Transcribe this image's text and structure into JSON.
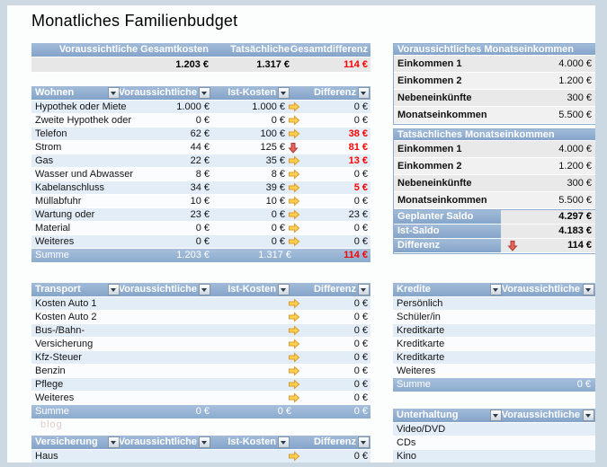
{
  "page": {
    "title": "Monatliches Familienbudget",
    "watermark": "blog"
  },
  "overview": {
    "headers": [
      "Voraussichtliche Gesamtkosten",
      "Tatsächliche",
      "Gesamtdifferenz"
    ],
    "values": [
      {
        "text": "1.203 €",
        "red": false
      },
      {
        "text": "1.317 €",
        "red": false
      },
      {
        "text": "114 €",
        "red": true
      }
    ]
  },
  "wohnen": {
    "title": "Wohnen",
    "col_headers": [
      "Voraussichtliche",
      "Ist-Kosten",
      "Differenz"
    ],
    "rows": [
      {
        "label": "Hypothek oder Miete",
        "planned": "1.000 €",
        "actual": "1.000 €",
        "arrow": "right",
        "diff": "0 €",
        "red": false
      },
      {
        "label": "Zweite Hypothek oder",
        "planned": "0 €",
        "actual": "0 €",
        "arrow": "right",
        "diff": "0 €",
        "red": false
      },
      {
        "label": "Telefon",
        "planned": "62 €",
        "actual": "100 €",
        "arrow": "right",
        "diff": "38 €",
        "red": true
      },
      {
        "label": "Strom",
        "planned": "44 €",
        "actual": "125 €",
        "arrow": "down",
        "diff": "81 €",
        "red": true
      },
      {
        "label": "Gas",
        "planned": "22 €",
        "actual": "35 €",
        "arrow": "right",
        "diff": "13 €",
        "red": true
      },
      {
        "label": "Wasser und Abwasser",
        "planned": "8 €",
        "actual": "8 €",
        "arrow": "right",
        "diff": "0 €",
        "red": false
      },
      {
        "label": "Kabelanschluss",
        "planned": "34 €",
        "actual": "39 €",
        "arrow": "right",
        "diff": "5 €",
        "red": true
      },
      {
        "label": "Müllabfuhr",
        "planned": "10 €",
        "actual": "10 €",
        "arrow": "right",
        "diff": "0 €",
        "red": false
      },
      {
        "label": "Wartung oder",
        "planned": "23 €",
        "actual": "0 €",
        "arrow": "right",
        "diff": "23 €",
        "red": false
      },
      {
        "label": "Material",
        "planned": "0 €",
        "actual": "0 €",
        "arrow": "right",
        "diff": "0 €",
        "red": false
      },
      {
        "label": "Weiteres",
        "planned": "0 €",
        "actual": "0 €",
        "arrow": "right",
        "diff": "0 €",
        "red": false
      }
    ],
    "sum": {
      "label": "Summe",
      "planned": "1.203 €",
      "actual": "1.317 €",
      "diff": "114 €",
      "red": true
    }
  },
  "transport": {
    "title": "Transport",
    "col_headers": [
      "Voraussichtliche",
      "Ist-Kosten",
      "Differenz"
    ],
    "rows": [
      {
        "label": "Kosten Auto 1",
        "planned": "",
        "actual": "",
        "arrow": "right",
        "diff": "0 €",
        "red": false
      },
      {
        "label": "Kosten Auto 2",
        "planned": "",
        "actual": "",
        "arrow": "right",
        "diff": "0 €",
        "red": false
      },
      {
        "label": "Bus-/Bahn-",
        "planned": "",
        "actual": "",
        "arrow": "right",
        "diff": "0 €",
        "red": false
      },
      {
        "label": "Versicherung",
        "planned": "",
        "actual": "",
        "arrow": "right",
        "diff": "0 €",
        "red": false
      },
      {
        "label": "Kfz-Steuer",
        "planned": "",
        "actual": "",
        "arrow": "right",
        "diff": "0 €",
        "red": false
      },
      {
        "label": "Benzin",
        "planned": "",
        "actual": "",
        "arrow": "right",
        "diff": "0 €",
        "red": false
      },
      {
        "label": "Pflege",
        "planned": "",
        "actual": "",
        "arrow": "right",
        "diff": "0 €",
        "red": false
      },
      {
        "label": "Weiteres",
        "planned": "",
        "actual": "",
        "arrow": "right",
        "diff": "0 €",
        "red": false
      }
    ],
    "sum": {
      "label": "Summe",
      "planned": "0 €",
      "actual": "0 €",
      "diff": "0 €",
      "red": false
    }
  },
  "versicherung": {
    "title": "Versicherung",
    "col_headers": [
      "Voraussichtliche",
      "Ist-Kosten",
      "Differenz"
    ],
    "rows": [
      {
        "label": "Haus",
        "planned": "",
        "actual": "",
        "arrow": "right",
        "diff": "0 €",
        "red": false
      }
    ]
  },
  "income_planned": {
    "title": "Voraussichtliches Monatseinkommen",
    "rows": [
      {
        "label": "Einkommen 1",
        "value": "4.000 €"
      },
      {
        "label": "Einkommen 2",
        "value": "1.200 €"
      },
      {
        "label": "Nebeneinkünfte",
        "value": "300 €"
      },
      {
        "label": "Monatseinkommen",
        "value": "5.500 €"
      }
    ]
  },
  "income_actual": {
    "title": "Tatsächliches Monatseinkommen",
    "rows": [
      {
        "label": "Einkommen 1",
        "value": "4.000 €"
      },
      {
        "label": "Einkommen 2",
        "value": "1.200 €"
      },
      {
        "label": "Nebeneinkünfte",
        "value": "300 €"
      },
      {
        "label": "Monatseinkommen",
        "value": "5.500 €"
      }
    ]
  },
  "saldo": {
    "rows": [
      {
        "label": "Geplanter Saldo",
        "value": "4.297 €",
        "red": false,
        "arrow": null
      },
      {
        "label": "Ist-Saldo",
        "value": "4.183 €",
        "red": false,
        "arrow": null
      },
      {
        "label": "Differenz",
        "value": "114 €",
        "red": true,
        "arrow": "down"
      }
    ]
  },
  "kredite": {
    "title": "Kredite",
    "col_header": "Voraussichtliche",
    "rows": [
      "Persönlich",
      "Schüler/in",
      "Kreditkarte",
      "Kreditkarte",
      "Kreditkarte",
      "Weiteres"
    ],
    "sum": {
      "label": "Summe",
      "value": "0 €"
    }
  },
  "unterhaltung": {
    "title": "Unterhaltung",
    "col_header": "Voraussichtliche",
    "rows": [
      "Video/DVD",
      "CDs",
      "Kino"
    ]
  },
  "colors": {
    "header_blue": "#8FADD0",
    "row_alt_blue": "#E3EDF7",
    "negative_red": "#FF0000",
    "frame": "#CCD8E2"
  }
}
